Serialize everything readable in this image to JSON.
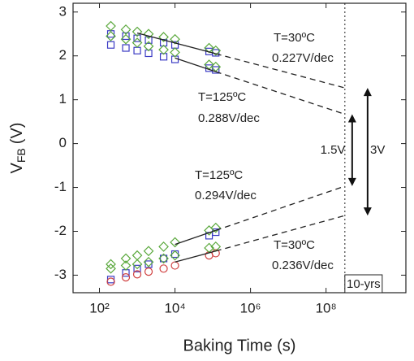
{
  "chart_data": {
    "type": "scatter",
    "x_label": "Baking Time (s)",
    "y_label": {
      "main": "V",
      "sub": "FB",
      "unit": "(V)"
    },
    "log_x": true,
    "xlim": [
      20,
      13000000000
    ],
    "ylim": [
      -3.4,
      3.2
    ],
    "xticks": [
      {
        "value": 100,
        "label": "10²"
      },
      {
        "value": 10000,
        "label": "10⁴"
      },
      {
        "value": 1000000,
        "label": "10⁶"
      },
      {
        "value": 100000000,
        "label": "10⁸"
      }
    ],
    "yticks": [
      3,
      2,
      1,
      0,
      -1,
      -2,
      -3
    ],
    "ten_years": 315000000,
    "ten_years_label": "10-yrs",
    "x": [
      200,
      500,
      1000,
      2000,
      5000,
      10000,
      80000,
      120000
    ],
    "series": [
      {
        "marker": "square",
        "color": "#3b3bc4",
        "values": [
          2.5,
          2.45,
          2.4,
          2.36,
          2.3,
          2.25,
          2.1,
          2.07
        ]
      },
      {
        "marker": "diamond",
        "color": "#5aa83c",
        "values": [
          2.68,
          2.6,
          2.55,
          2.5,
          2.43,
          2.38,
          2.18,
          2.12
        ]
      },
      {
        "marker": "square",
        "color": "#3b3bc4",
        "values": [
          2.25,
          2.18,
          2.12,
          2.06,
          1.98,
          1.92,
          1.72,
          1.68
        ]
      },
      {
        "marker": "diamond",
        "color": "#5aa83c",
        "values": [
          2.45,
          2.38,
          2.3,
          2.22,
          2.14,
          2.08,
          1.8,
          1.75
        ]
      },
      {
        "marker": "square",
        "color": "#3b3bc4",
        "values": [
          -3.1,
          -2.95,
          -2.85,
          -2.75,
          -2.62,
          -2.52,
          -2.1,
          -2.02
        ]
      },
      {
        "marker": "diamond",
        "color": "#5aa83c",
        "values": [
          -2.75,
          -2.62,
          -2.55,
          -2.45,
          -2.35,
          -2.25,
          -1.98,
          -1.92
        ]
      },
      {
        "marker": "circle",
        "color": "#d04040",
        "values": [
          -3.15,
          -3.05,
          -2.98,
          -2.92,
          -2.85,
          -2.78,
          -2.55,
          -2.5
        ]
      },
      {
        "marker": "diamond",
        "color": "#5aa83c",
        "values": [
          -2.85,
          -2.78,
          -2.75,
          -2.7,
          -2.62,
          -2.55,
          -2.38,
          -2.35
        ]
      }
    ],
    "fits": [
      {
        "x": [
          1000,
          120000
        ],
        "values": [
          2.52,
          2.05
        ]
      },
      {
        "x": [
          10000,
          120000
        ],
        "values": [
          1.95,
          1.64
        ]
      },
      {
        "x": [
          10000,
          120000
        ],
        "values": [
          -2.3,
          -1.98
        ]
      },
      {
        "x": [
          10000,
          120000
        ],
        "values": [
          -2.7,
          -2.45
        ]
      }
    ],
    "extrapolations": [
      {
        "x": [
          120000,
          315000000
        ],
        "values": [
          2.05,
          1.27
        ]
      },
      {
        "x": [
          120000,
          315000000
        ],
        "values": [
          1.64,
          0.67
        ]
      },
      {
        "x": [
          120000,
          315000000
        ],
        "values": [
          -1.98,
          -0.97
        ]
      },
      {
        "x": [
          120000,
          315000000
        ],
        "values": [
          -2.45,
          -1.64
        ]
      }
    ],
    "annotations": [
      "T=30ºC",
      "0.227V/dec",
      "T=125ºC",
      "0.288V/dec",
      "T=125ºC",
      "0.294V/dec",
      "T=30ºC",
      "0.236V/dec",
      "1.5V",
      "3V"
    ]
  }
}
